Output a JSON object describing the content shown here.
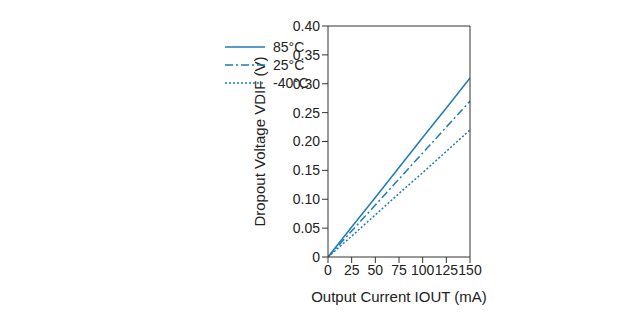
{
  "chart_data": {
    "type": "line",
    "x_label": "Output Current IOUT (mA)",
    "y_label": "Dropout Voltage VDIF (V)",
    "x": [
      0,
      25,
      50,
      75,
      100,
      125,
      150
    ],
    "series": [
      {
        "name": "85°C",
        "color": "#1f7bb6",
        "line_style": "solid",
        "values": [
          0,
          0.052,
          0.103,
          0.155,
          0.207,
          0.258,
          0.31
        ]
      },
      {
        "name": "25°C",
        "color": "#1f7bb6",
        "line_style": "dashdot",
        "values": [
          0,
          0.045,
          0.09,
          0.135,
          0.18,
          0.225,
          0.27
        ]
      },
      {
        "name": "-40°C",
        "color": "#1f7bb6",
        "line_style": "dotted",
        "values": [
          0,
          0.036,
          0.073,
          0.11,
          0.146,
          0.183,
          0.22
        ]
      }
    ],
    "xlim": [
      0,
      150
    ],
    "xticks": [
      0,
      25,
      50,
      75,
      100,
      125,
      150
    ],
    "ylim": [
      0,
      0.4
    ],
    "yticks": [
      0,
      0.05,
      {
        "value": 0.1,
        "label": "0.10"
      },
      0.15,
      {
        "value": 0.2,
        "label": "0.20"
      },
      0.25,
      {
        "value": 0.3,
        "label": "0.30"
      },
      0.35,
      {
        "value": 0.4,
        "label": "0.40"
      }
    ],
    "grid": false,
    "legend": "upper left"
  }
}
